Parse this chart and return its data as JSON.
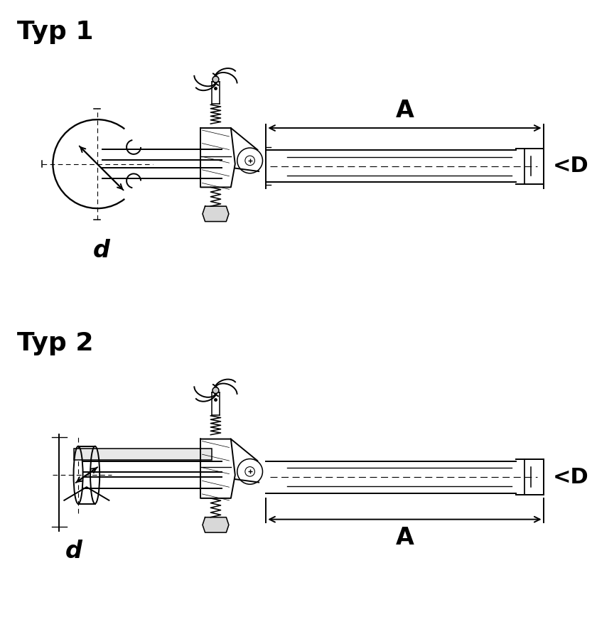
{
  "title1": "Typ 1",
  "title2": "Typ 2",
  "label_A": "A",
  "label_D": "<D",
  "label_d": "d",
  "bg_color": "#ffffff",
  "line_color": "#000000",
  "title_fontsize": 26,
  "label_fontsize": 20,
  "fig_width": 8.33,
  "fig_height": 8.75,
  "dpi": 100
}
